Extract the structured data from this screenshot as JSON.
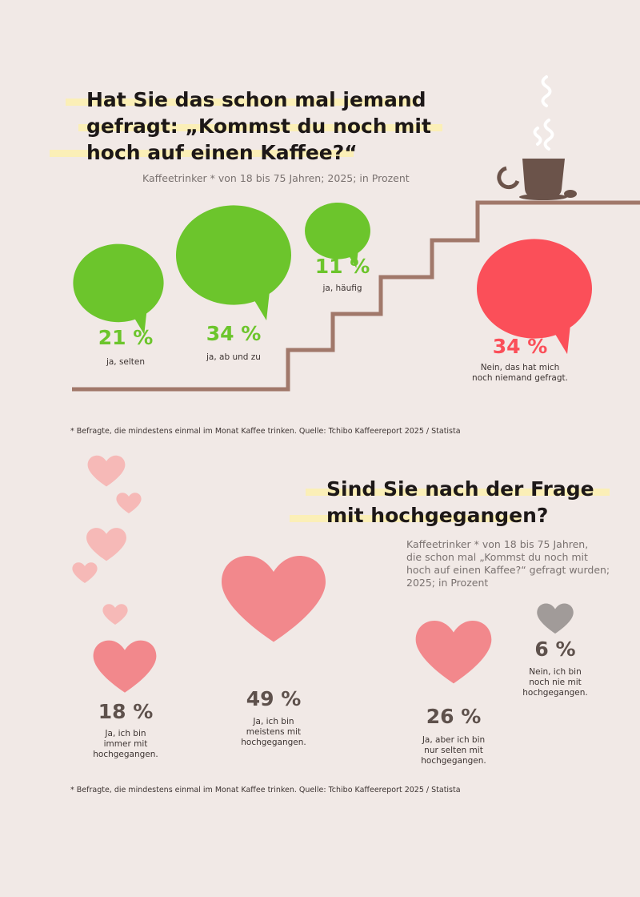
{
  "section1": {
    "title_lines": [
      "Hat Sie das schon mal jemand",
      "gefragt: „Kommst du noch mit",
      "hoch auf einen Kaffee?“"
    ],
    "subtitle": "Kaffeetrinker * von 18 bis 75 Jahren; 2025; in Prozent",
    "footnote": "* Befragte, die mindestens einmal im Monat Kaffee trinken. Quelle: Tchibo Kaffeereport 2025 / Statista"
  },
  "section2": {
    "title_lines": [
      "Sind Sie nach der Frage",
      "mit hochgegangen?"
    ],
    "subtitle_lines": [
      "Kaffeetrinker * von 18 bis 75 Jahren,",
      "die schon mal „Kommst du noch mit",
      "hoch auf einen Kaffee?“ gefragt wurden;",
      "2025; in Prozent"
    ],
    "footnote": "* Befragte, die mindestens einmal im Monat Kaffee trinken. Quelle: Tchibo Kaffeereport 2025 / Statista"
  },
  "chart_data": [
    {
      "type": "bubble",
      "title": "Hat Sie das schon mal jemand gefragt: „Kommst du noch mit hoch auf einen Kaffee?“",
      "unit": "%",
      "categories": [
        "ja, selten",
        "ja, ab und zu",
        "ja, häufig",
        "Nein, das hat mich noch niemand gefragt."
      ],
      "values": [
        21,
        34,
        11,
        34
      ],
      "value_labels": [
        "21 %",
        "34 %",
        "11 %",
        "34 %"
      ],
      "colors": [
        "#6cc52c",
        "#6cc52c",
        "#6cc52c",
        "#fb4f59"
      ]
    },
    {
      "type": "bubble",
      "title": "Sind Sie nach der Frage mit hochgegangen?",
      "unit": "%",
      "categories": [
        "Ja, ich bin immer mit hochgegangen.",
        "Ja, ich bin meistens mit hochgegangen.",
        "Ja, aber ich bin nur selten mit hochgegangen.",
        "Nein, ich bin noch nie mit hochgegangen."
      ],
      "values": [
        18,
        49,
        26,
        6
      ],
      "value_labels": [
        "18 %",
        "49 %",
        "26 %",
        "6 %"
      ],
      "colors": [
        "#f2888c",
        "#f2888c",
        "#f2888c",
        "#a19b99"
      ]
    }
  ],
  "labels1": [
    [
      "ja, selten"
    ],
    [
      "ja, ab und zu"
    ],
    [
      "ja, häufig"
    ],
    [
      "Nein, das hat mich",
      "noch niemand gefragt."
    ]
  ],
  "labels2": [
    [
      "Ja, ich bin",
      "immer mit",
      "hochgegangen."
    ],
    [
      "Ja, ich bin",
      "meistens mit",
      "hochgegangen."
    ],
    [
      "Ja, aber ich bin",
      "nur selten mit",
      "hochgegangen."
    ],
    [
      "Nein, ich bin",
      "noch nie mit",
      "hochgegangen."
    ]
  ],
  "colors": {
    "background": "#f1e9e6",
    "green": "#6cc52c",
    "red": "#fb4f59",
    "heart": "#f2888c",
    "heart_light": "#f6b9b7",
    "heart_gray": "#a19b99",
    "stairs": "#a1786a",
    "cup": "#6b534a",
    "highlight": "#fbefb7"
  }
}
